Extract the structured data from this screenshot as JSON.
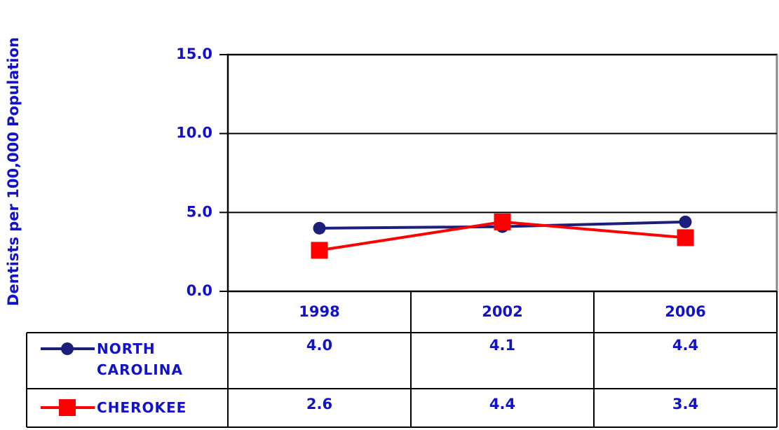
{
  "chart_data": {
    "type": "line",
    "y_label": "Dentists per 100,000 Population",
    "categories": [
      "1998",
      "2002",
      "2006"
    ],
    "series": [
      {
        "name": "NORTH CAROLINA",
        "color": "#1c1f7a",
        "values": [
          4.0,
          4.1,
          4.4
        ],
        "value_labels": [
          "4.0",
          "4.1",
          "4.4"
        ]
      },
      {
        "name": "CHEROKEE",
        "color": "#ff0000",
        "values": [
          2.6,
          4.4,
          3.4
        ],
        "value_labels": [
          "2.6",
          "4.4",
          "3.4"
        ]
      }
    ],
    "ylim": [
      0,
      15
    ],
    "yticks": [
      {
        "value": 0,
        "label": "0.0"
      },
      {
        "value": 5,
        "label": "5.0"
      },
      {
        "value": 10,
        "label": "10.0"
      },
      {
        "value": 15,
        "label": "15.0"
      }
    ],
    "grid": true
  }
}
